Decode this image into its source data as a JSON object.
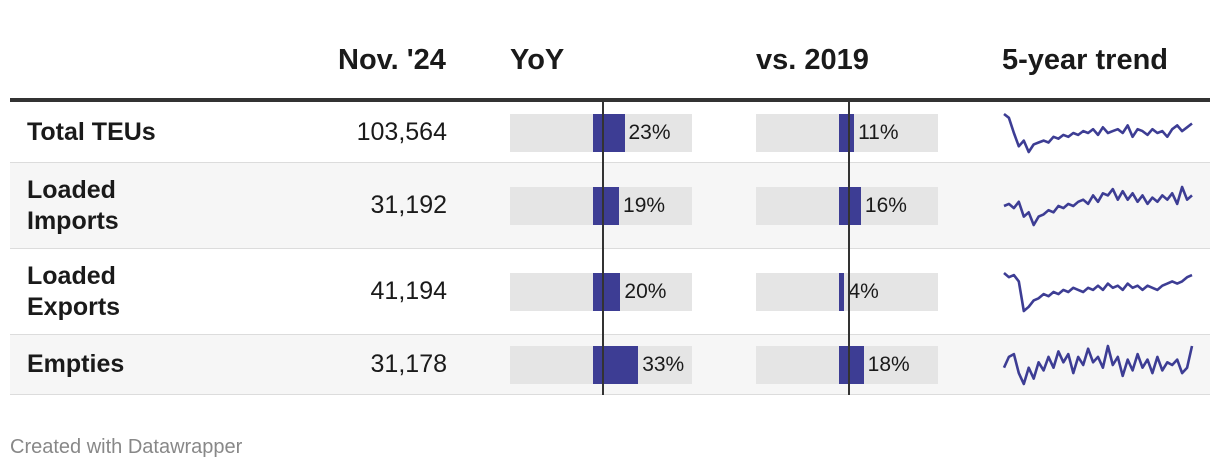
{
  "header": {
    "col_month": "Nov. '24",
    "col_yoy": "YoY",
    "col_2019": "vs. 2019",
    "col_trend": "5-year trend"
  },
  "colors": {
    "bar": "#3d3d94",
    "bar_bg": "#e5e5e5",
    "spark": "#3d3d94"
  },
  "chart_data": {
    "type": "table",
    "columns": [
      "",
      "Nov. '24",
      "YoY",
      "vs. 2019",
      "5-year trend"
    ],
    "rows": [
      {
        "label": "Total TEUs",
        "value": "103,564",
        "yoy": 23,
        "yoy_label": "23%",
        "vs2019": 11,
        "vs2019_label": "11%",
        "trend": [
          72,
          70,
          62,
          55,
          58,
          52,
          56,
          57,
          58,
          57,
          60,
          59,
          61,
          60,
          62,
          61,
          63,
          62,
          64,
          61,
          65,
          62,
          63,
          64,
          62,
          66,
          60,
          64,
          63,
          61,
          64,
          62,
          63,
          60,
          64,
          66,
          63,
          65,
          67
        ]
      },
      {
        "label": "Loaded Imports",
        "value": "31,192",
        "yoy": 19,
        "yoy_label": "19%",
        "vs2019": 16,
        "vs2019_label": "16%",
        "trend": [
          55,
          56,
          54,
          57,
          50,
          52,
          46,
          50,
          51,
          53,
          52,
          55,
          54,
          56,
          55,
          57,
          58,
          56,
          60,
          57,
          61,
          60,
          63,
          58,
          62,
          58,
          61,
          57,
          60,
          56,
          59,
          57,
          60,
          58,
          61,
          56,
          64,
          58,
          60
        ]
      },
      {
        "label": "Loaded Exports",
        "value": "41,194",
        "yoy": 20,
        "yoy_label": "20%",
        "vs2019": 4,
        "vs2019_label": "4%",
        "trend": [
          62,
          60,
          61,
          58,
          44,
          46,
          49,
          50,
          52,
          51,
          53,
          52,
          54,
          53,
          55,
          54,
          53,
          55,
          54,
          56,
          54,
          57,
          55,
          56,
          54,
          57,
          55,
          56,
          54,
          56,
          55,
          54,
          56,
          57,
          58,
          57,
          58,
          60,
          61
        ]
      },
      {
        "label": "Empties",
        "value": "31,178",
        "yoy": 33,
        "yoy_label": "33%",
        "vs2019": 18,
        "vs2019_label": "18%",
        "trend": [
          58,
          62,
          63,
          56,
          52,
          58,
          54,
          60,
          57,
          62,
          58,
          64,
          60,
          63,
          56,
          62,
          59,
          65,
          60,
          62,
          58,
          66,
          59,
          62,
          55,
          61,
          57,
          63,
          58,
          61,
          56,
          62,
          57,
          60,
          59,
          61,
          56,
          58,
          66
        ]
      }
    ],
    "yoy_range": [
      0,
      50
    ],
    "vs2019_range": [
      0,
      50
    ]
  },
  "credit": "Created with Datawrapper"
}
